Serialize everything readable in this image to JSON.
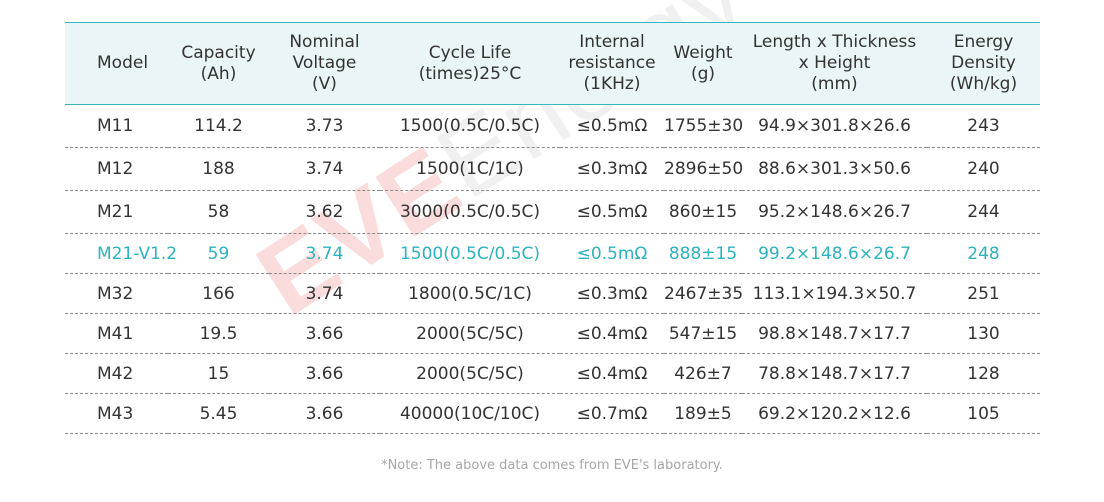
{
  "table": {
    "headers": [
      "Model",
      "Capacity\n(Ah)",
      "Nominal\nVoltage\n(V)",
      "Cycle Life\n(times)25°C",
      "Internal\nresistance\n(1KHz)",
      "Weight\n(g)",
      "Length x Thickness\nx Height\n(mm)",
      "Energy\nDensity\n(Wh/kg)"
    ],
    "rows": [
      [
        "M11",
        "114.2",
        "3.73",
        "1500(0.5C/0.5C)",
        "≤0.5mΩ",
        "1755±30",
        "94.9×301.8×26.6",
        "243"
      ],
      [
        "M12",
        "188",
        "3.74",
        "1500(1C/1C)",
        "≤0.3mΩ",
        "2896±50",
        "88.6×301.3×50.6",
        "240"
      ],
      [
        "M21",
        "58",
        "3.62",
        "3000(0.5C/0.5C)",
        "≤0.5mΩ",
        "860±15",
        "95.2×148.6×26.7",
        "244"
      ],
      [
        "M21-V1.2",
        "59",
        "3.74",
        "1500(0.5C/0.5C)",
        "≤0.5mΩ",
        "888±15",
        "99.2×148.6×26.7",
        "248"
      ],
      [
        "M32",
        "166",
        "3.74",
        "1800(0.5C/1C)",
        "≤0.3mΩ",
        "2467±35",
        "113.1×194.3×50.7",
        "251"
      ],
      [
        "M41",
        "19.5",
        "3.66",
        "2000(5C/5C)",
        "≤0.4mΩ",
        "547±15",
        "98.8×148.7×17.7",
        "130"
      ],
      [
        "M42",
        "15",
        "3.66",
        "2000(5C/5C)",
        "≤0.4mΩ",
        "426±7",
        "78.8×148.7×17.7",
        "128"
      ],
      [
        "M43",
        "5.45",
        "3.66",
        "40000(10C/10C)",
        "≤0.7mΩ",
        "189±5",
        "69.2×120.2×12.6",
        "105"
      ]
    ],
    "highlight_row_index": 3
  },
  "note": "*Note: The above data comes from EVE's laboratory.",
  "watermark": {
    "brand": "EVE",
    "rest": "Energy"
  },
  "colors": {
    "header_bg": "#e9f5f6",
    "accent": "#39b5bd",
    "highlight_text": "#2cb3bd",
    "text": "#333333",
    "note_text": "#a6a6a6"
  }
}
